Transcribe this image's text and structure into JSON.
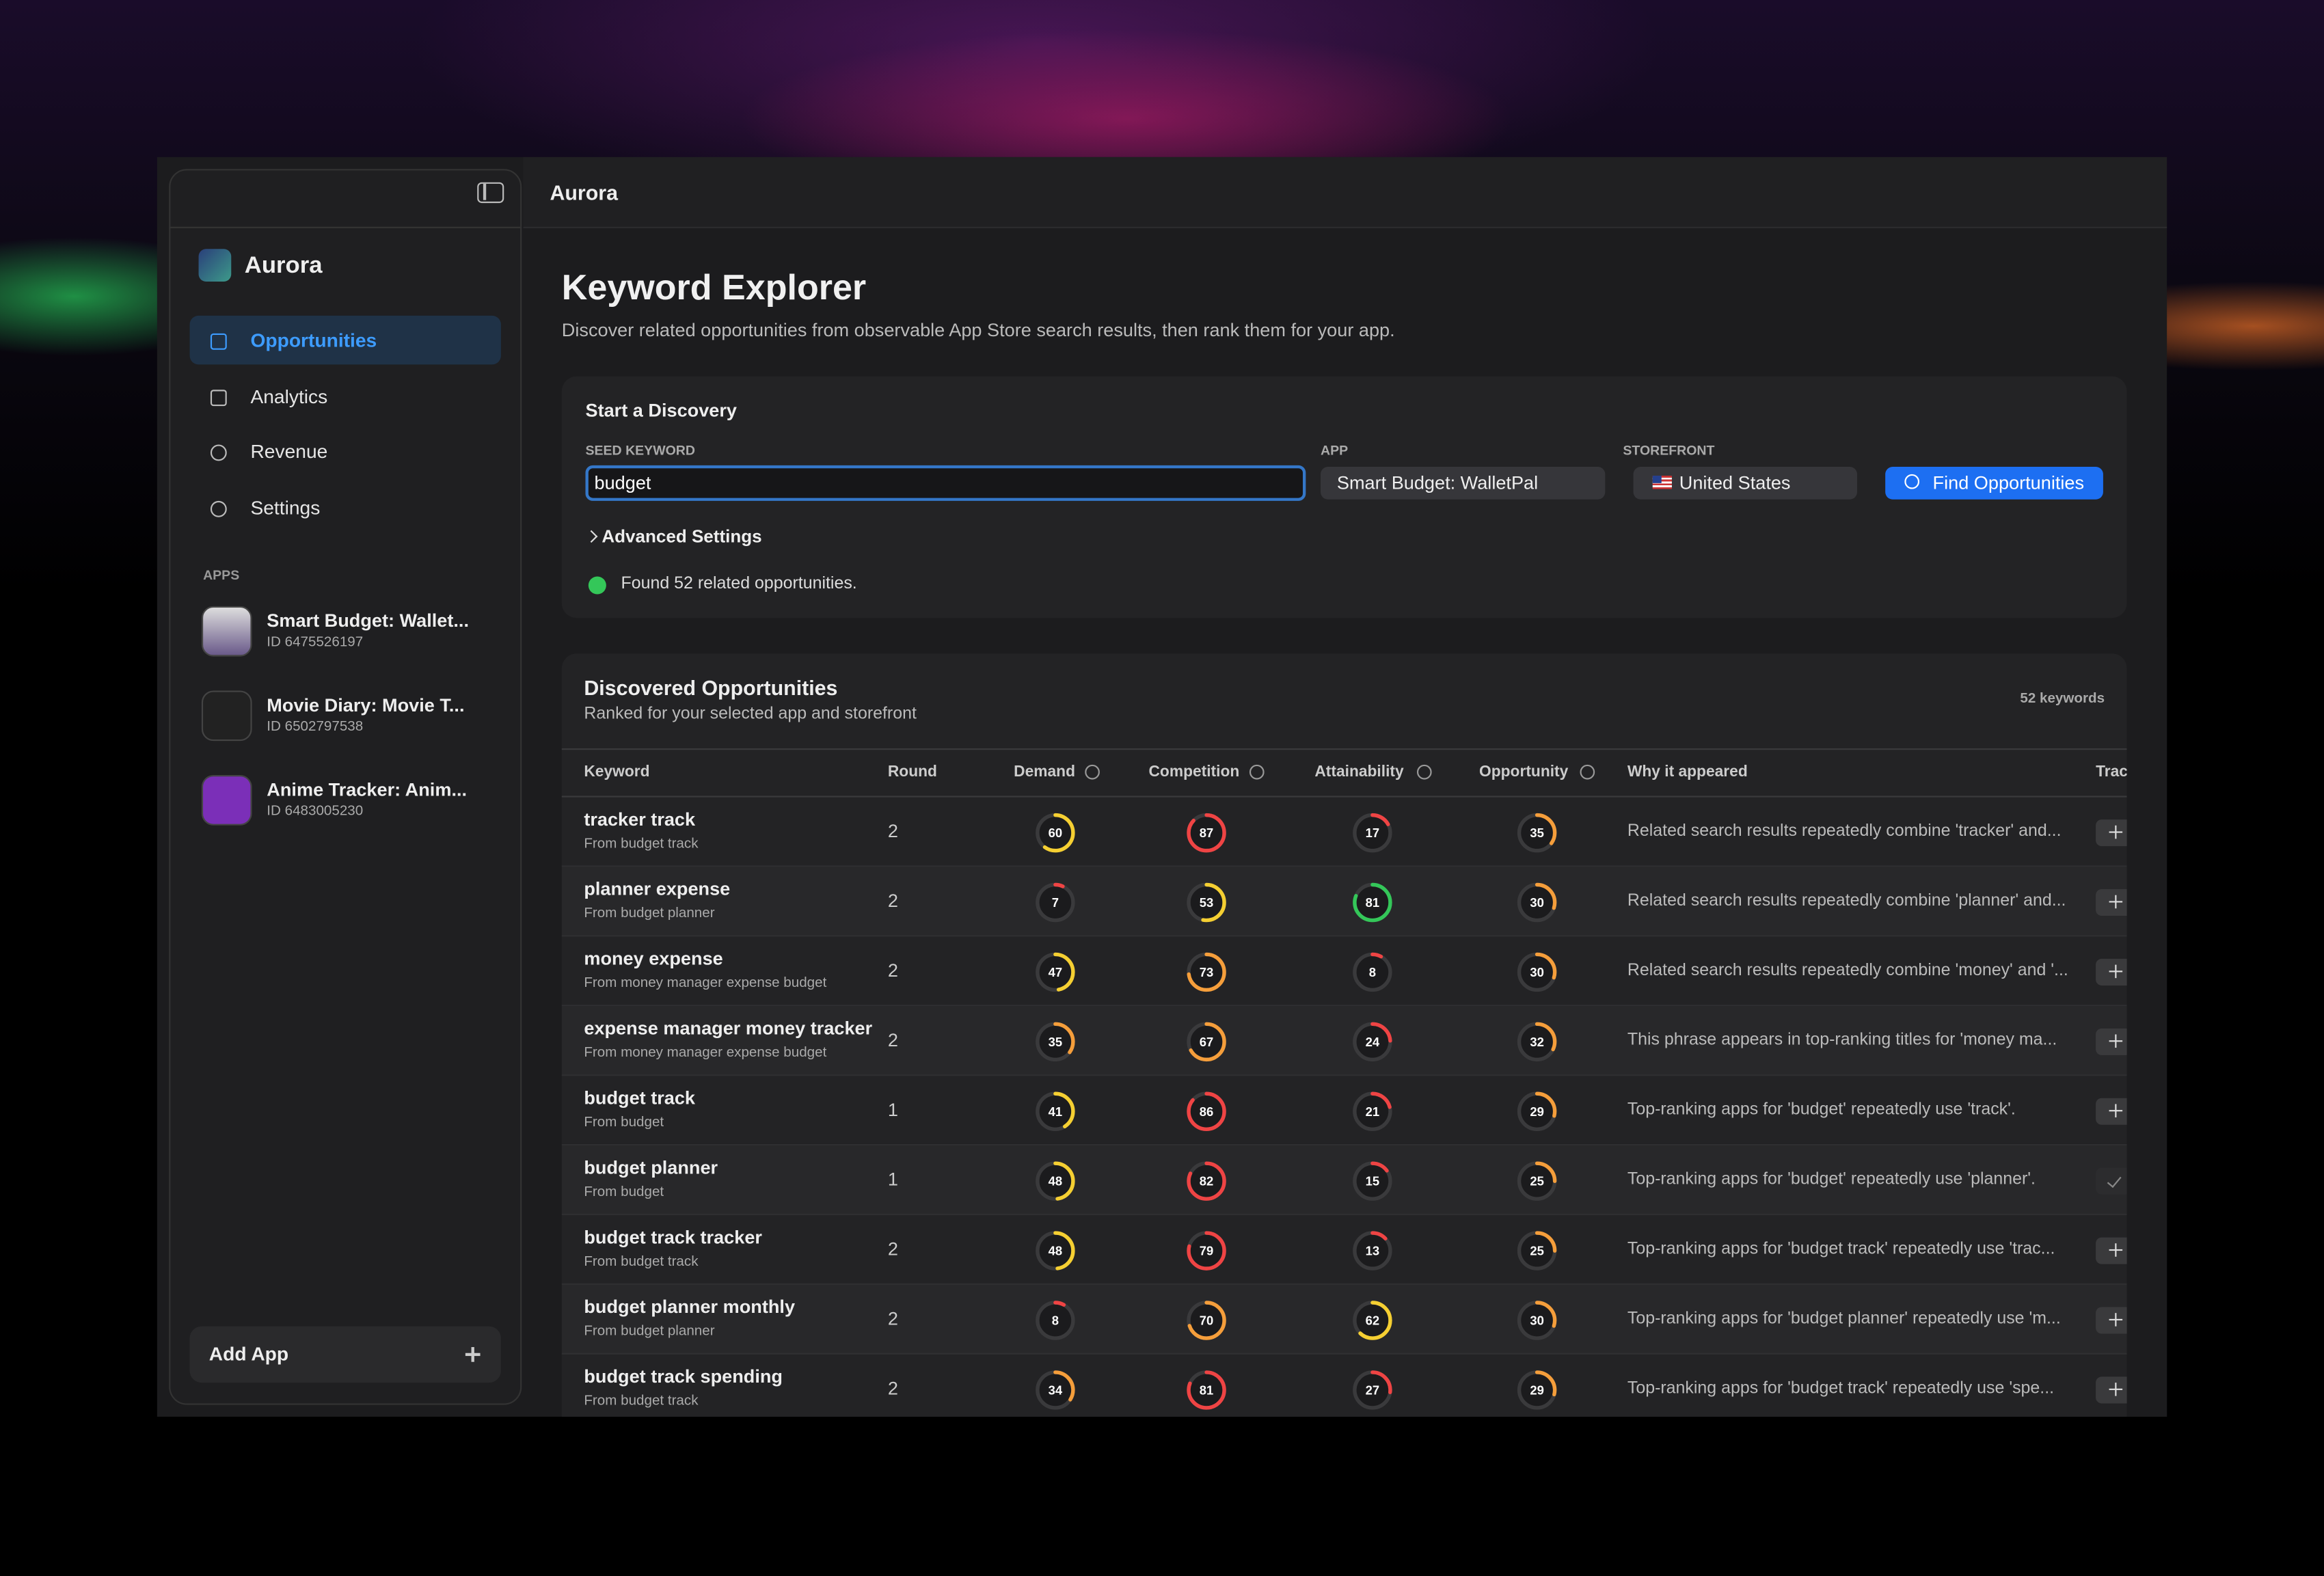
{
  "header": {
    "title": "Aurora"
  },
  "sidebar": {
    "brand": "Aurora",
    "nav": [
      "Opportunities",
      "Analytics",
      "Revenue",
      "Settings"
    ],
    "selected": 0,
    "apps_heading": "APPS",
    "apps": [
      {
        "name": "Smart Budget: Wallet...",
        "id": "ID 6475526197"
      },
      {
        "name": "Movie Diary: Movie T...",
        "id": "ID 6502797538"
      },
      {
        "name": "Anime Tracker: Anim...",
        "id": "ID 6483005230"
      }
    ],
    "add_app": "Add App"
  },
  "page": {
    "title": "Keyword Explorer",
    "subtitle": "Discover related opportunities from observable App Store search results, then rank them for your app."
  },
  "discovery": {
    "heading": "Start a Discovery",
    "seed_label": "SEED KEYWORD",
    "seed_value": "budget",
    "app_label": "APP",
    "app_value": "Smart Budget: WalletPal",
    "storefront_label": "STOREFRONT",
    "storefront_value": "United States",
    "button": "Find Opportunities",
    "advanced": "Advanced Settings",
    "status": "Found 52 related opportunities."
  },
  "results": {
    "title": "Discovered Opportunities",
    "subtitle": "Ranked for your selected app and storefront",
    "count": "52 keywords",
    "columns": [
      "Keyword",
      "Round",
      "Demand",
      "Competition",
      "Attainability",
      "Opportunity",
      "Why it appeared",
      "Track"
    ],
    "rows": [
      {
        "keyword": "tracker track",
        "source": "From budget track",
        "round": 2,
        "demand": 60,
        "competition": 87,
        "attainability": 17,
        "opportunity": 35,
        "why": "Related search results repeatedly combine 'tracker' and...",
        "tracked": false
      },
      {
        "keyword": "planner expense",
        "source": "From budget planner",
        "round": 2,
        "demand": 7,
        "competition": 53,
        "attainability": 81,
        "opportunity": 30,
        "why": "Related search results repeatedly combine 'planner' and...",
        "tracked": false
      },
      {
        "keyword": "money expense",
        "source": "From money manager expense budget",
        "round": 2,
        "demand": 47,
        "competition": 73,
        "attainability": 8,
        "opportunity": 30,
        "why": "Related search results repeatedly combine 'money' and '...",
        "tracked": false
      },
      {
        "keyword": "expense manager money tracker",
        "source": "From money manager expense budget",
        "round": 2,
        "demand": 35,
        "competition": 67,
        "attainability": 24,
        "opportunity": 32,
        "why": "This phrase appears in top-ranking titles for 'money ma...",
        "tracked": false
      },
      {
        "keyword": "budget track",
        "source": "From budget",
        "round": 1,
        "demand": 41,
        "competition": 86,
        "attainability": 21,
        "opportunity": 29,
        "why": "Top-ranking apps for 'budget' repeatedly use 'track'.",
        "tracked": false
      },
      {
        "keyword": "budget planner",
        "source": "From budget",
        "round": 1,
        "demand": 48,
        "competition": 82,
        "attainability": 15,
        "opportunity": 25,
        "why": "Top-ranking apps for 'budget' repeatedly use 'planner'.",
        "tracked": true
      },
      {
        "keyword": "budget track tracker",
        "source": "From budget track",
        "round": 2,
        "demand": 48,
        "competition": 79,
        "attainability": 13,
        "opportunity": 25,
        "why": "Top-ranking apps for 'budget track' repeatedly use 'trac...",
        "tracked": false
      },
      {
        "keyword": "budget planner monthly",
        "source": "From budget planner",
        "round": 2,
        "demand": 8,
        "competition": 70,
        "attainability": 62,
        "opportunity": 30,
        "why": "Top-ranking apps for 'budget planner' repeatedly use 'm...",
        "tracked": false
      },
      {
        "keyword": "budget track spending",
        "source": "From budget track",
        "round": 2,
        "demand": 34,
        "competition": 81,
        "attainability": 27,
        "opportunity": 29,
        "why": "Top-ranking apps for 'budget track' repeatedly use 'spe...",
        "tracked": false
      }
    ]
  }
}
